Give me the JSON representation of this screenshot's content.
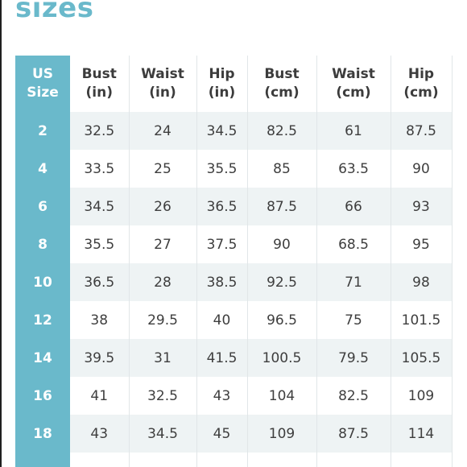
{
  "heading": "sizes",
  "table": {
    "headers": [
      {
        "line1": "US",
        "line2": "Size"
      },
      {
        "line1": "Bust",
        "line2": "(in)"
      },
      {
        "line1": "Waist",
        "line2": "(in)"
      },
      {
        "line1": "Hip",
        "line2": "(in)"
      },
      {
        "line1": "Bust",
        "line2": "(cm)"
      },
      {
        "line1": "Waist",
        "line2": "(cm)"
      },
      {
        "line1": "Hip",
        "line2": "(cm)"
      }
    ],
    "rows": [
      [
        "2",
        "32.5",
        "24",
        "34.5",
        "82.5",
        "61",
        "87.5"
      ],
      [
        "4",
        "33.5",
        "25",
        "35.5",
        "85",
        "63.5",
        "90"
      ],
      [
        "6",
        "34.5",
        "26",
        "36.5",
        "87.5",
        "66",
        "93"
      ],
      [
        "8",
        "35.5",
        "27",
        "37.5",
        "90",
        "68.5",
        "95"
      ],
      [
        "10",
        "36.5",
        "28",
        "38.5",
        "92.5",
        "71",
        "98"
      ],
      [
        "12",
        "38",
        "29.5",
        "40",
        "96.5",
        "75",
        "101.5"
      ],
      [
        "14",
        "39.5",
        "31",
        "41.5",
        "100.5",
        "79.5",
        "105.5"
      ],
      [
        "16",
        "41",
        "32.5",
        "43",
        "104",
        "82.5",
        "109"
      ],
      [
        "18",
        "43",
        "34.5",
        "45",
        "109",
        "87.5",
        "114"
      ],
      [
        "",
        "",
        "",
        "",
        "",
        "",
        ""
      ]
    ]
  },
  "colors": {
    "accent": "#6ab9cb",
    "stripe": "#eef3f4",
    "text": "#3e3e3e"
  }
}
